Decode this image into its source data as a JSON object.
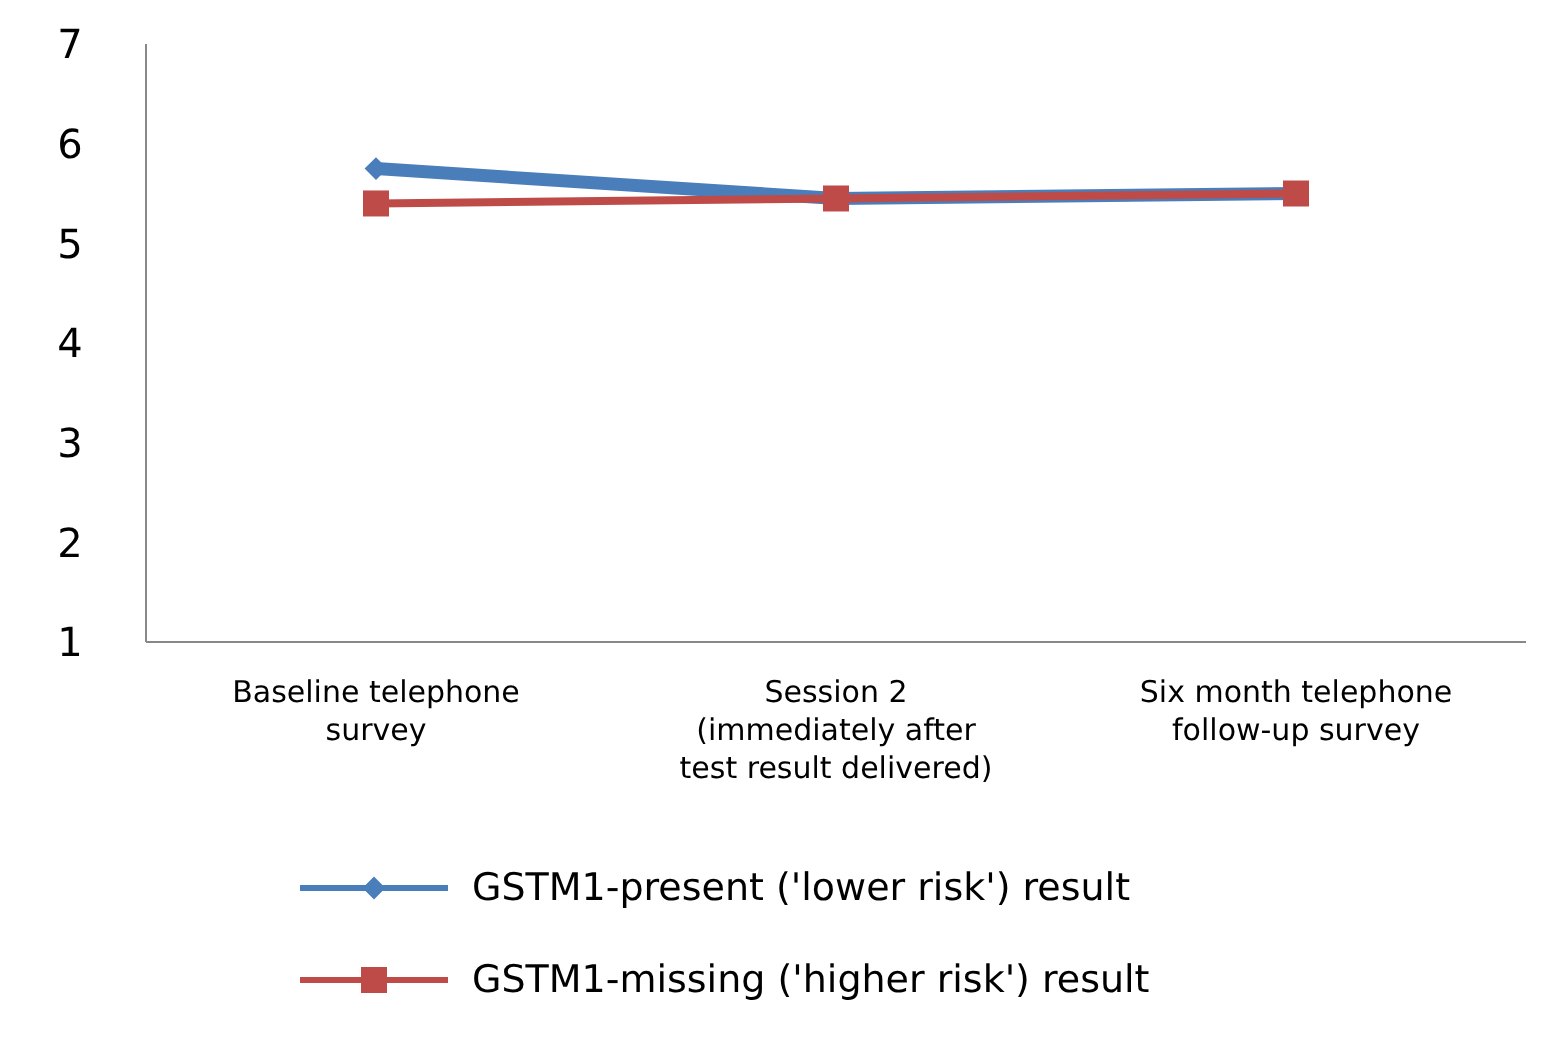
{
  "chart_data": {
    "type": "line",
    "categories": [
      "Baseline telephone survey",
      "Session 2 (immediately after test result delivered)",
      "Six month telephone follow-up survey"
    ],
    "series": [
      {
        "name": "GSTM1-present ('lower risk') result",
        "color": "#4a7ebb",
        "marker": "diamond",
        "values": [
          5.75,
          5.45,
          5.5
        ]
      },
      {
        "name": "GSTM1-missing ('higher risk') result",
        "color": "#be4b48",
        "marker": "square",
        "values": [
          5.4,
          5.45,
          5.5
        ]
      }
    ],
    "ylim": [
      1,
      7
    ],
    "yticks": [
      1,
      2,
      3,
      4,
      5,
      6,
      7
    ],
    "grid": false,
    "legend": "bottom"
  }
}
